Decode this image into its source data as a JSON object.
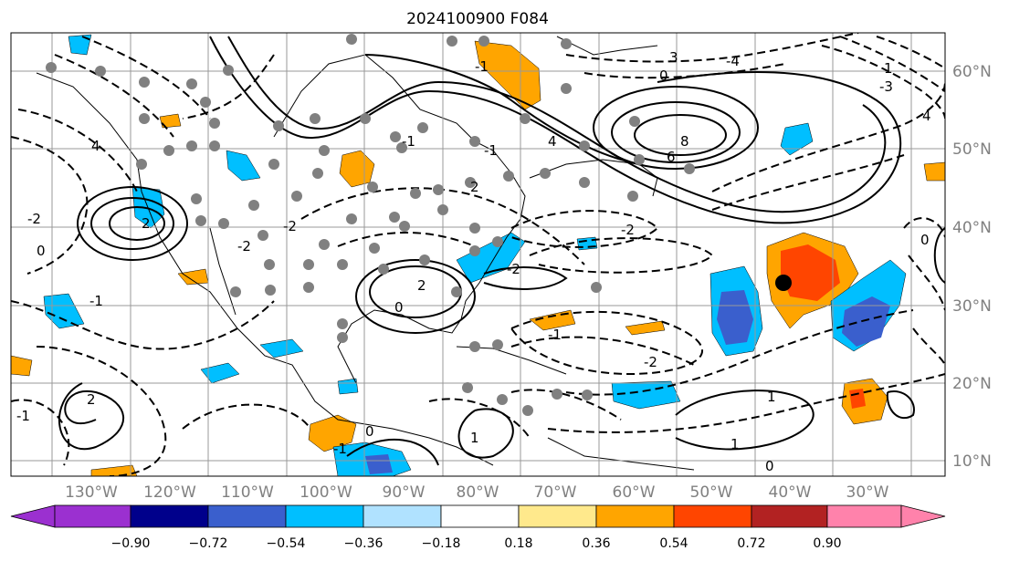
{
  "title": "2024100900 F084",
  "lon_labels": [
    "130°W",
    "120°W",
    "110°W",
    "100°W",
    "90°W",
    "80°W",
    "70°W",
    "60°W",
    "50°W",
    "40°W",
    "30°W"
  ],
  "lat_labels": [
    "60°N",
    "50°N",
    "40°N",
    "30°N",
    "20°N",
    "10°N"
  ],
  "colorbar": {
    "ticks": [
      "−0.90",
      "−0.72",
      "−0.54",
      "−0.36",
      "−0.18",
      "0.18",
      "0.36",
      "0.54",
      "0.72",
      "0.90"
    ],
    "colors": [
      "#9b30d0",
      "#00008b",
      "#3a5fcd",
      "#00bfff",
      "#b0e2ff",
      "#ffffff",
      "#ffe98c",
      "#ffa500",
      "#ff4500",
      "#b22222",
      "#ff82ab"
    ]
  },
  "contour_labels": [
    "2",
    "4",
    "-2",
    "4",
    "8",
    "6",
    "-2",
    "-2",
    "0",
    "2",
    "-1",
    "-1",
    "1",
    "-1",
    "0",
    "-2",
    "0",
    "1",
    "1",
    "0",
    "-1",
    "2",
    "0",
    "-1",
    "-1",
    "-4",
    "3",
    "-3",
    "4",
    "1",
    "-1",
    "-2",
    "-2",
    "0",
    "2"
  ],
  "colors": {
    "land_line": "#000000",
    "grid": "#999999",
    "stations": "#808080"
  }
}
